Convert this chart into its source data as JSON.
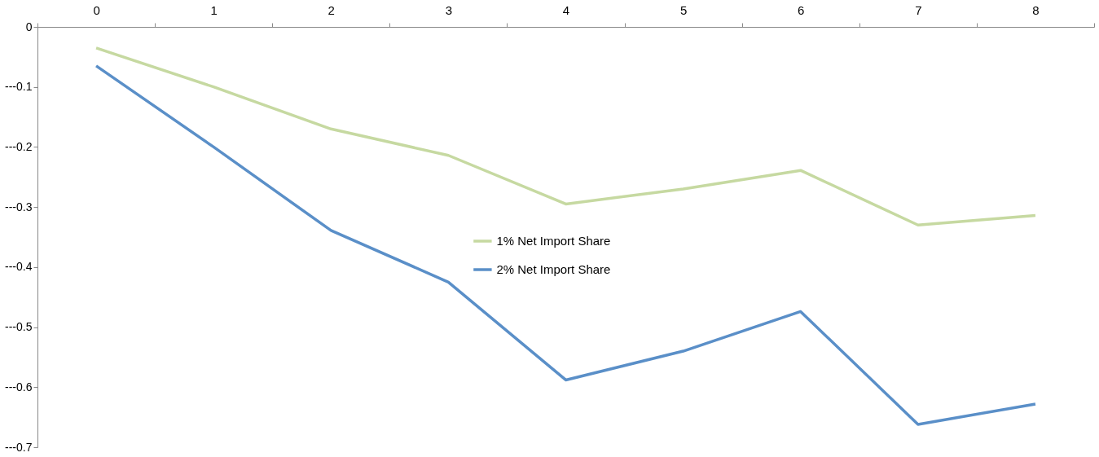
{
  "chart_data": {
    "type": "line",
    "categories": [
      "0",
      "1",
      "2",
      "3",
      "4",
      "5",
      "6",
      "7",
      "8"
    ],
    "series": [
      {
        "name": "1% Net Import Share",
        "color": "#c6d9a1",
        "values": [
          -0.035,
          -0.1,
          -0.17,
          -0.214,
          -0.295,
          -0.27,
          -0.239,
          -0.33,
          -0.314
        ]
      },
      {
        "name": "2% Net Import Share",
        "color": "#5a8fc8",
        "values": [
          -0.065,
          -0.2,
          -0.339,
          -0.425,
          -0.588,
          -0.54,
          -0.474,
          -0.662,
          -0.628
        ]
      }
    ],
    "ylim": [
      -0.7,
      0
    ],
    "yticks": [
      0,
      {
        "value": -0.1,
        "label": "---0.1"
      },
      {
        "value": -0.2,
        "label": "---0.2"
      },
      {
        "value": -0.3,
        "label": "---0.3"
      },
      {
        "value": -0.4,
        "label": "---0.4"
      },
      {
        "value": -0.5,
        "label": "---0.5"
      },
      {
        "value": -0.6,
        "label": "---0.6"
      },
      {
        "value": -0.7,
        "label": "---0.7"
      }
    ],
    "grid": false,
    "legend": "center",
    "marker": "none",
    "line_style": "solid"
  }
}
